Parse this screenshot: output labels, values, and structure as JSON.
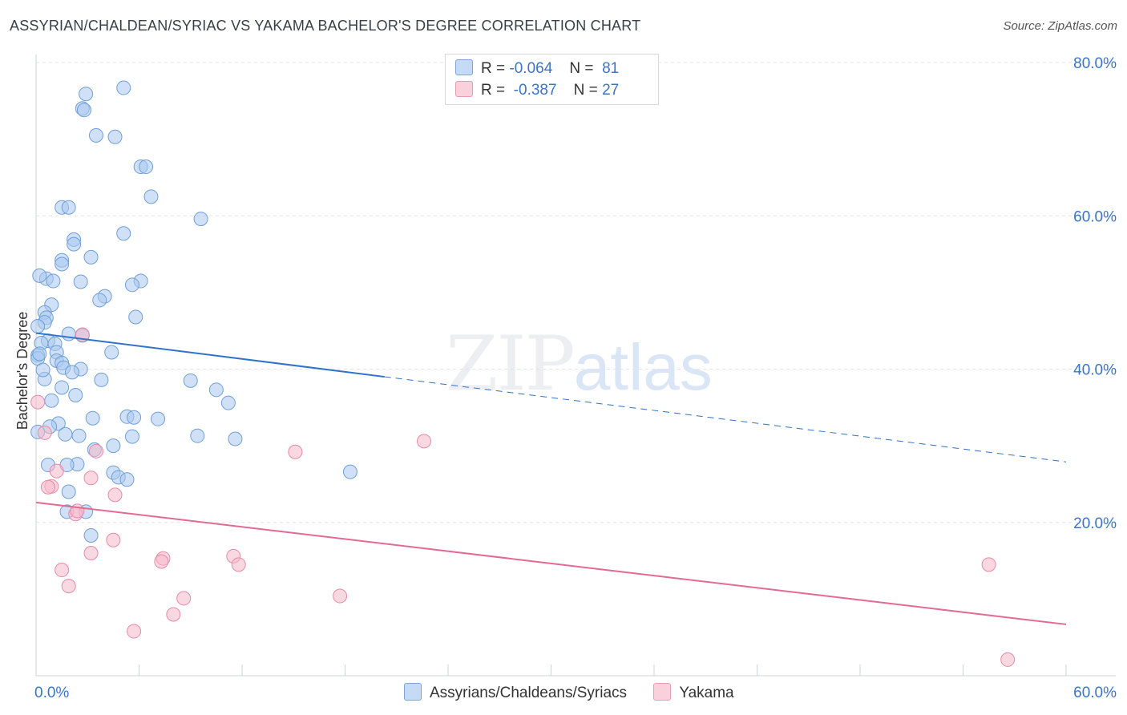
{
  "title": "ASSYRIAN/CHALDEAN/SYRIAC VS YAKAMA BACHELOR'S DEGREE CORRELATION CHART",
  "source": "Source: ZipAtlas.com",
  "watermark": {
    "zip": "ZIP",
    "atlas": "atlas"
  },
  "legend_top": {
    "rows": [
      {
        "r_label": "R =",
        "r_value": "-0.064",
        "n_label": "N =",
        "n_value": "81",
        "color": "#a9c8f0"
      },
      {
        "r_label": "R =",
        "r_value": "-0.387",
        "n_label": "N =",
        "n_value": "27",
        "color": "#f6b8cb"
      }
    ]
  },
  "chart_data": {
    "type": "scatter",
    "title": "ASSYRIAN/CHALDEAN/SYRIAC VS YAKAMA BACHELOR'S DEGREE CORRELATION CHART",
    "xlabel": "",
    "ylabel": "Bachelor's Degree",
    "xlim": [
      0,
      60
    ],
    "ylim": [
      0,
      80
    ],
    "x_tick_labels": [
      "0.0%",
      "60.0%"
    ],
    "y_tick_labels": [
      "20.0%",
      "40.0%",
      "60.0%",
      "80.0%"
    ],
    "y_ticks": [
      20,
      40,
      60,
      80
    ],
    "grid": true,
    "series": [
      {
        "name": "Assyrians/Chaldeans/Syriacs",
        "color": "#a9c8f0",
        "stroke": "#6f9fd8",
        "trend_color": "#2f72c9",
        "trend": {
          "x0": 0,
          "y0": 44.7,
          "x1": 20.3,
          "y1": 39.0,
          "x_dash_end": 60,
          "y_dash_end": 27.9
        },
        "points": [
          [
            5.1,
            76.7
          ],
          [
            2.9,
            75.9
          ],
          [
            2.7,
            74.0
          ],
          [
            2.8,
            73.8
          ],
          [
            3.5,
            70.5
          ],
          [
            4.6,
            70.3
          ],
          [
            6.1,
            66.4
          ],
          [
            6.4,
            66.4
          ],
          [
            6.7,
            62.5
          ],
          [
            9.6,
            59.6
          ],
          [
            1.5,
            61.1
          ],
          [
            1.9,
            61.1
          ],
          [
            5.1,
            57.7
          ],
          [
            2.2,
            56.9
          ],
          [
            2.2,
            56.3
          ],
          [
            3.2,
            54.6
          ],
          [
            1.5,
            54.2
          ],
          [
            1.5,
            53.7
          ],
          [
            0.6,
            51.8
          ],
          [
            1.0,
            51.5
          ],
          [
            2.6,
            51.4
          ],
          [
            6.1,
            51.5
          ],
          [
            5.6,
            51.0
          ],
          [
            4.0,
            49.5
          ],
          [
            3.7,
            49.0
          ],
          [
            0.9,
            48.4
          ],
          [
            0.5,
            47.4
          ],
          [
            0.6,
            46.7
          ],
          [
            0.5,
            46.1
          ],
          [
            5.8,
            46.8
          ],
          [
            0.1,
            45.6
          ],
          [
            1.9,
            44.6
          ],
          [
            2.7,
            44.4
          ],
          [
            0.7,
            43.7
          ],
          [
            1.1,
            43.3
          ],
          [
            0.3,
            43.4
          ],
          [
            4.4,
            42.2
          ],
          [
            1.2,
            42.2
          ],
          [
            0.1,
            41.8
          ],
          [
            0.1,
            41.4
          ],
          [
            1.2,
            41.1
          ],
          [
            1.5,
            40.8
          ],
          [
            1.6,
            40.2
          ],
          [
            2.6,
            40.0
          ],
          [
            2.1,
            39.6
          ],
          [
            0.5,
            38.7
          ],
          [
            3.8,
            38.6
          ],
          [
            9.0,
            38.5
          ],
          [
            10.5,
            37.3
          ],
          [
            1.5,
            37.6
          ],
          [
            2.3,
            36.6
          ],
          [
            0.9,
            35.9
          ],
          [
            11.2,
            35.6
          ],
          [
            5.3,
            33.8
          ],
          [
            5.7,
            33.7
          ],
          [
            7.1,
            33.5
          ],
          [
            3.3,
            33.6
          ],
          [
            1.3,
            32.9
          ],
          [
            0.8,
            32.5
          ],
          [
            0.1,
            31.8
          ],
          [
            1.7,
            31.5
          ],
          [
            2.5,
            31.3
          ],
          [
            5.6,
            31.2
          ],
          [
            9.4,
            31.3
          ],
          [
            11.6,
            30.9
          ],
          [
            4.5,
            30.0
          ],
          [
            3.4,
            29.5
          ],
          [
            0.7,
            27.5
          ],
          [
            2.4,
            27.6
          ],
          [
            1.8,
            27.5
          ],
          [
            18.3,
            26.6
          ],
          [
            4.5,
            26.5
          ],
          [
            4.8,
            25.9
          ],
          [
            5.3,
            25.6
          ],
          [
            1.9,
            24.0
          ],
          [
            1.8,
            21.4
          ],
          [
            2.9,
            21.4
          ],
          [
            3.2,
            18.3
          ],
          [
            0.2,
            52.2
          ],
          [
            0.4,
            39.9
          ],
          [
            0.2,
            42.0
          ]
        ]
      },
      {
        "name": "Yakama",
        "color": "#f6b8cb",
        "stroke": "#e68aa8",
        "trend_color": "#e26a93",
        "trend": {
          "x0": 0,
          "y0": 22.6,
          "x1": 60,
          "y1": 6.7
        },
        "points": [
          [
            0.1,
            35.7
          ],
          [
            2.7,
            44.5
          ],
          [
            0.5,
            31.7
          ],
          [
            22.6,
            30.6
          ],
          [
            15.1,
            29.2
          ],
          [
            3.5,
            29.3
          ],
          [
            1.2,
            26.7
          ],
          [
            3.2,
            25.8
          ],
          [
            0.9,
            24.7
          ],
          [
            0.7,
            24.6
          ],
          [
            4.6,
            23.6
          ],
          [
            2.3,
            21.1
          ],
          [
            2.4,
            21.5
          ],
          [
            4.5,
            17.7
          ],
          [
            3.2,
            16.0
          ],
          [
            7.4,
            15.3
          ],
          [
            7.3,
            14.9
          ],
          [
            11.5,
            15.6
          ],
          [
            11.8,
            14.5
          ],
          [
            1.5,
            13.8
          ],
          [
            1.9,
            11.7
          ],
          [
            8.6,
            10.1
          ],
          [
            17.7,
            10.4
          ],
          [
            8.0,
            8.0
          ],
          [
            5.7,
            5.8
          ],
          [
            55.5,
            14.5
          ],
          [
            56.6,
            2.1
          ]
        ]
      }
    ]
  }
}
